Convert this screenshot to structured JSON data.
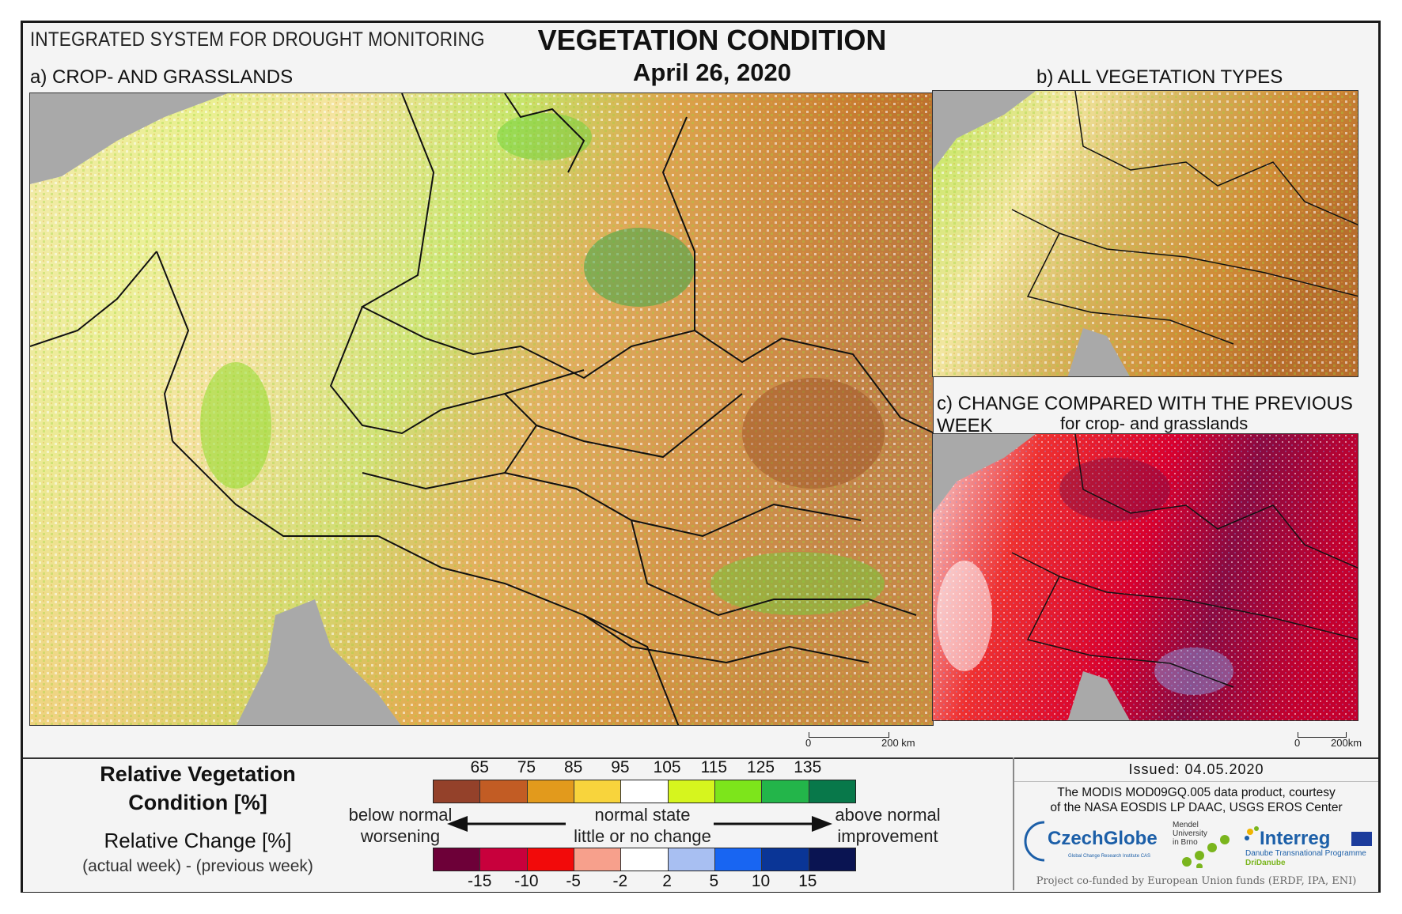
{
  "header": {
    "system_title": "INTEGRATED SYSTEM FOR DROUGHT MONITORING",
    "main_title": "VEGETATION CONDITION",
    "date": "April 26, 2020"
  },
  "panels": {
    "a_label": "a) CROP- AND GRASSLANDS",
    "b_label": "b) ALL VEGETATION TYPES",
    "c_label": "c) CHANGE COMPARED WITH THE PREVIOUS WEEK",
    "c_sublabel": "for crop- and grasslands"
  },
  "scalebars": {
    "a": {
      "zero": "0",
      "end": "200 km"
    },
    "c": {
      "zero": "0",
      "end": "200km"
    }
  },
  "legend": {
    "rvc_title_1": "Relative Vegetation",
    "rvc_title_2": "Condition [%]",
    "rc_title": "Relative Change [%]",
    "rc_sub": "(actual week) - (previous week)",
    "top_ticks": [
      "65",
      "75",
      "85",
      "95",
      "105",
      "115",
      "125",
      "135"
    ],
    "top_colors": [
      "#94412a",
      "#c25c24",
      "#e29a1c",
      "#f8d43c",
      "#ffffff",
      "#d6f51e",
      "#7de51b",
      "#23b54a",
      "#08784a"
    ],
    "bottom_ticks": [
      "-15",
      "-10",
      "-5",
      "-2",
      "2",
      "5",
      "10",
      "15"
    ],
    "bottom_colors": [
      "#6d0038",
      "#c8003c",
      "#f20a0a",
      "#f7a08c",
      "#ffffff",
      "#a8bff2",
      "#1865f2",
      "#0a3596",
      "#0a1452"
    ],
    "left_top": "below normal",
    "left_bottom": "worsening",
    "mid_top": "normal state",
    "mid_bottom": "little or no change",
    "right_top": "above normal",
    "right_bottom": "improvement"
  },
  "credits": {
    "issued": "Issued: 04.05.2020",
    "line1": "The MODIS MOD09GQ.005 data product, courtesy",
    "line2": "of the NASA EOSDIS LP DAAC, USGS EROS Center",
    "czechglobe": "CzechGlobe",
    "czechglobe_sub": "Global Change Research Institute CAS",
    "mendel_1": "Mendel",
    "mendel_2": "University",
    "mendel_3": "in Brno",
    "interreg": "Interreg",
    "interreg_sub1": "Danube Transnational Programme",
    "interreg_sub2": "DriDanube",
    "cofund": "Project co-funded by European Union funds (ERDF, IPA, ENI)"
  }
}
